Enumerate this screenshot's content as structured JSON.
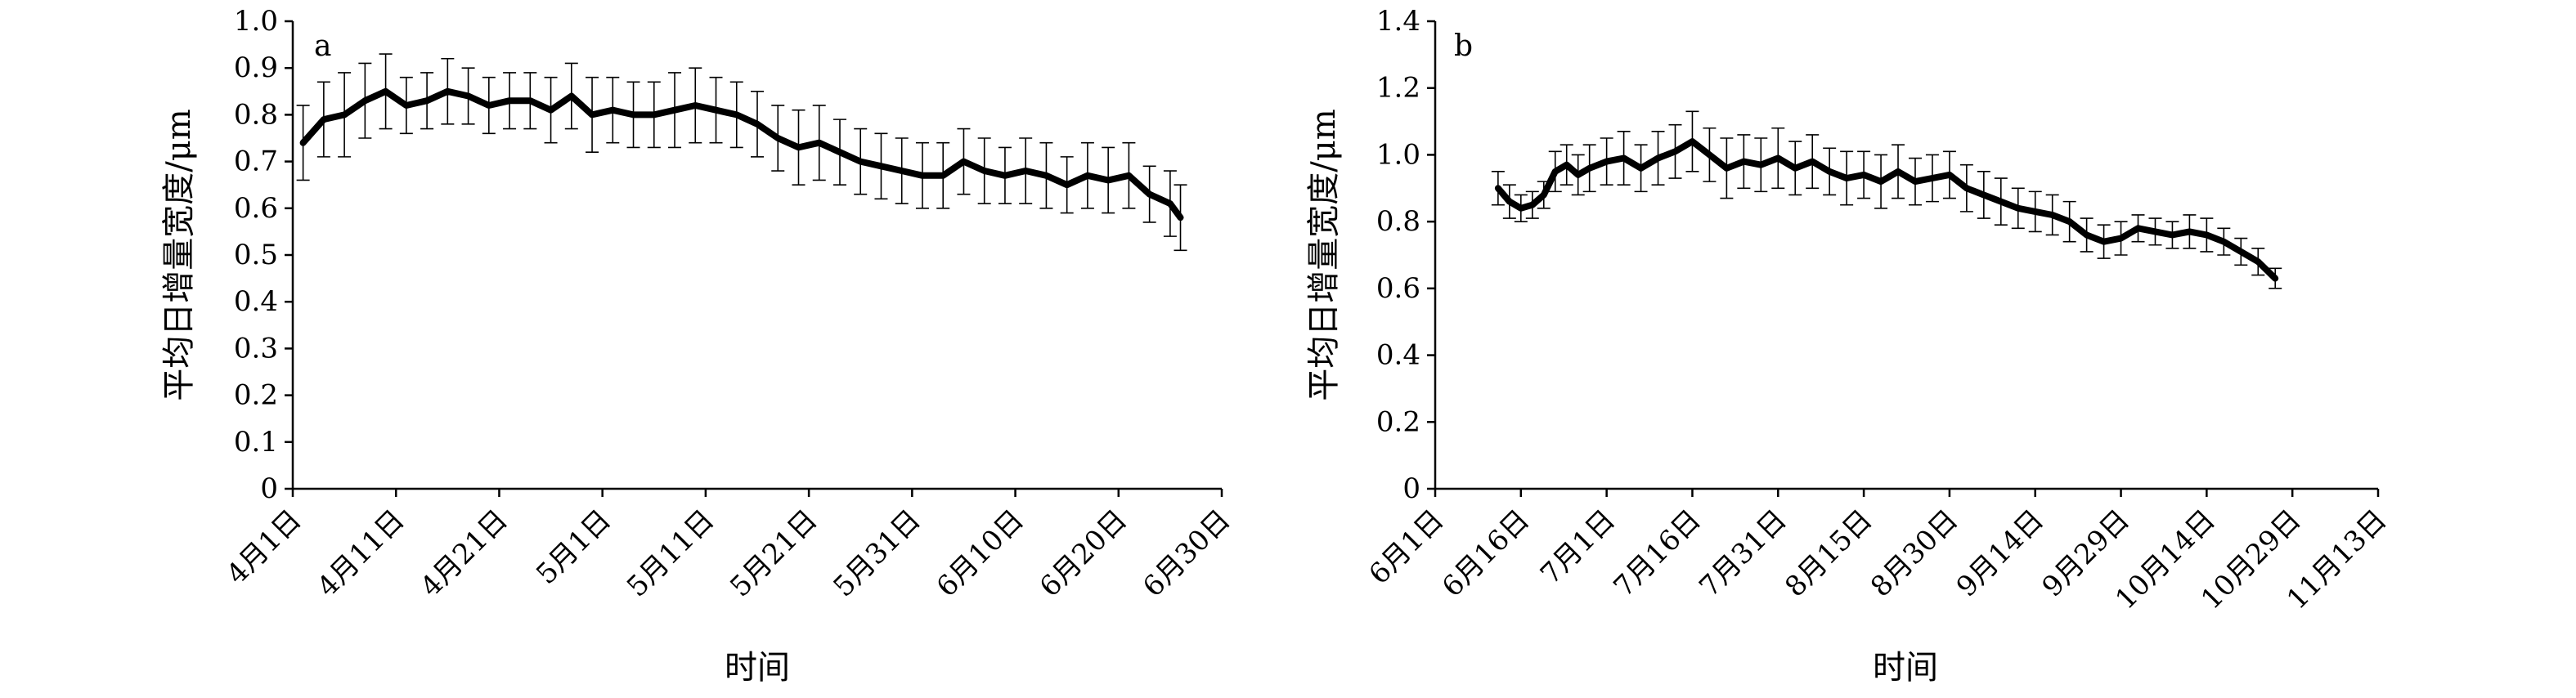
{
  "chart_data": [
    {
      "panel_label": "a",
      "type": "line",
      "xlabel": "时间",
      "ylabel": "平均日增量宽度/μm",
      "ylim": [
        0,
        1.0
      ],
      "yticks": [
        "0",
        "0.1",
        "0.2",
        "0.3",
        "0.4",
        "0.5",
        "0.6",
        "0.7",
        "0.8",
        "0.9",
        "1.0"
      ],
      "xlim": [
        "2019-04-01",
        "2019-06-30"
      ],
      "xticks": [
        "4月1日",
        "4月11日",
        "4月21日",
        "5月1日",
        "5月11日",
        "5月21日",
        "5月31日",
        "6月10日",
        "6月20日",
        "6月30日"
      ],
      "error_bars": true,
      "series": [
        {
          "x": [
            "2019-04-02",
            "2019-04-04",
            "2019-04-06",
            "2019-04-08",
            "2019-04-10",
            "2019-04-12",
            "2019-04-14",
            "2019-04-16",
            "2019-04-18",
            "2019-04-20",
            "2019-04-22",
            "2019-04-24",
            "2019-04-26",
            "2019-04-28",
            "2019-04-30",
            "2019-05-02",
            "2019-05-04",
            "2019-05-06",
            "2019-05-08",
            "2019-05-10",
            "2019-05-12",
            "2019-05-14",
            "2019-05-16",
            "2019-05-18",
            "2019-05-20",
            "2019-05-22",
            "2019-05-24",
            "2019-05-26",
            "2019-05-28",
            "2019-05-30",
            "2019-06-01",
            "2019-06-03",
            "2019-06-05",
            "2019-06-07",
            "2019-06-09",
            "2019-06-11",
            "2019-06-13",
            "2019-06-15",
            "2019-06-17",
            "2019-06-19",
            "2019-06-21",
            "2019-06-23",
            "2019-06-25",
            "2019-06-26"
          ],
          "y": [
            0.74,
            0.79,
            0.8,
            0.83,
            0.85,
            0.82,
            0.83,
            0.85,
            0.84,
            0.82,
            0.83,
            0.83,
            0.81,
            0.84,
            0.8,
            0.81,
            0.8,
            0.8,
            0.81,
            0.82,
            0.81,
            0.8,
            0.78,
            0.75,
            0.73,
            0.74,
            0.72,
            0.7,
            0.69,
            0.68,
            0.67,
            0.67,
            0.7,
            0.68,
            0.67,
            0.68,
            0.67,
            0.65,
            0.67,
            0.66,
            0.67,
            0.63,
            0.61,
            0.58
          ],
          "err": [
            0.08,
            0.08,
            0.09,
            0.08,
            0.08,
            0.06,
            0.06,
            0.07,
            0.06,
            0.06,
            0.06,
            0.06,
            0.07,
            0.07,
            0.08,
            0.07,
            0.07,
            0.07,
            0.08,
            0.08,
            0.07,
            0.07,
            0.07,
            0.07,
            0.08,
            0.08,
            0.07,
            0.07,
            0.07,
            0.07,
            0.07,
            0.07,
            0.07,
            0.07,
            0.06,
            0.07,
            0.07,
            0.06,
            0.07,
            0.07,
            0.07,
            0.06,
            0.07,
            0.07
          ]
        }
      ]
    },
    {
      "panel_label": "b",
      "type": "line",
      "xlabel": "时间",
      "ylabel": "平均日增量宽度/μm",
      "ylim": [
        0,
        1.4
      ],
      "yticks": [
        "0",
        "0.2",
        "0.4",
        "0.6",
        "0.8",
        "1.0",
        "1.2",
        "1.4"
      ],
      "xlim": [
        "2019-06-01",
        "2019-11-13"
      ],
      "xticks": [
        "6月1日",
        "6月16日",
        "7月1日",
        "7月16日",
        "7月31日",
        "8月15日",
        "8月30日",
        "9月14日",
        "9月29日",
        "10月14日",
        "10月29日",
        "11月13日"
      ],
      "error_bars": true,
      "series": [
        {
          "x": [
            "2019-06-12",
            "2019-06-14",
            "2019-06-16",
            "2019-06-18",
            "2019-06-20",
            "2019-06-22",
            "2019-06-24",
            "2019-06-26",
            "2019-06-28",
            "2019-07-01",
            "2019-07-04",
            "2019-07-07",
            "2019-07-10",
            "2019-07-13",
            "2019-07-16",
            "2019-07-19",
            "2019-07-22",
            "2019-07-25",
            "2019-07-28",
            "2019-07-31",
            "2019-08-03",
            "2019-08-06",
            "2019-08-09",
            "2019-08-12",
            "2019-08-15",
            "2019-08-18",
            "2019-08-21",
            "2019-08-24",
            "2019-08-27",
            "2019-08-30",
            "2019-09-02",
            "2019-09-05",
            "2019-09-08",
            "2019-09-11",
            "2019-09-14",
            "2019-09-17",
            "2019-09-20",
            "2019-09-23",
            "2019-09-26",
            "2019-09-29",
            "2019-10-02",
            "2019-10-05",
            "2019-10-08",
            "2019-10-11",
            "2019-10-14",
            "2019-10-17",
            "2019-10-20",
            "2019-10-23",
            "2019-10-26"
          ],
          "y": [
            0.9,
            0.86,
            0.84,
            0.85,
            0.88,
            0.95,
            0.97,
            0.94,
            0.96,
            0.98,
            0.99,
            0.96,
            0.99,
            1.01,
            1.04,
            1.0,
            0.96,
            0.98,
            0.97,
            0.99,
            0.96,
            0.98,
            0.95,
            0.93,
            0.94,
            0.92,
            0.95,
            0.92,
            0.93,
            0.94,
            0.9,
            0.88,
            0.86,
            0.84,
            0.83,
            0.82,
            0.8,
            0.76,
            0.74,
            0.75,
            0.78,
            0.77,
            0.76,
            0.77,
            0.76,
            0.74,
            0.71,
            0.68,
            0.63
          ],
          "err": [
            0.05,
            0.05,
            0.04,
            0.04,
            0.04,
            0.06,
            0.06,
            0.06,
            0.07,
            0.07,
            0.08,
            0.07,
            0.08,
            0.08,
            0.09,
            0.08,
            0.09,
            0.08,
            0.08,
            0.09,
            0.08,
            0.08,
            0.07,
            0.08,
            0.07,
            0.08,
            0.08,
            0.07,
            0.07,
            0.07,
            0.07,
            0.07,
            0.07,
            0.06,
            0.06,
            0.06,
            0.06,
            0.05,
            0.05,
            0.05,
            0.04,
            0.04,
            0.04,
            0.05,
            0.05,
            0.04,
            0.04,
            0.04,
            0.03
          ]
        }
      ]
    }
  ]
}
